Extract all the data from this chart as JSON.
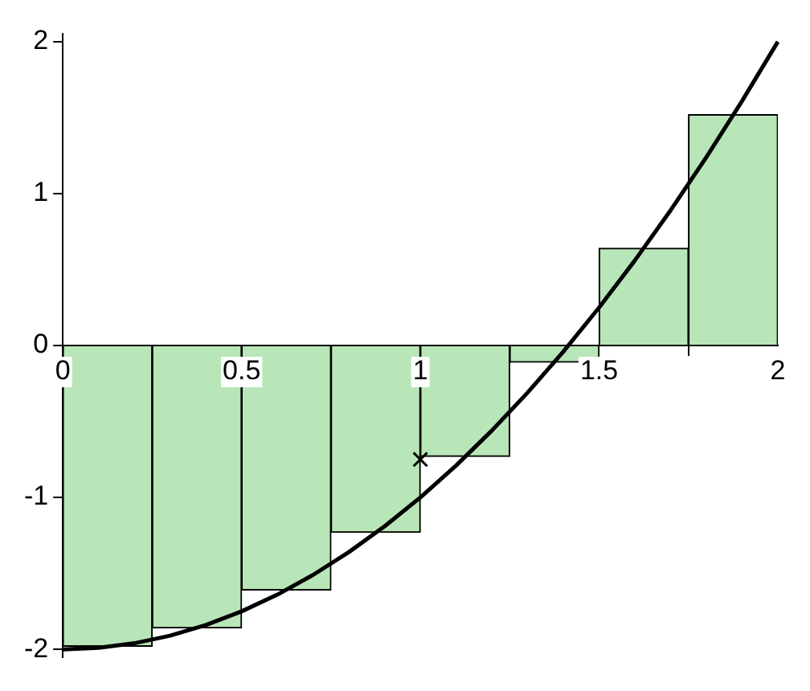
{
  "chart_data": {
    "type": "bar",
    "xlim": [
      0,
      2
    ],
    "xticks": [
      0,
      0.5,
      1,
      1.5,
      2
    ],
    "ylim": [
      -2.05,
      2.05
    ],
    "yticks": [
      -2,
      -1,
      0,
      1,
      2
    ],
    "grid": false,
    "legend": false,
    "series": [
      {
        "color": "#b8e6b8",
        "x": [
          0.125,
          0.375,
          0.625,
          0.875,
          1.125,
          1.375,
          1.625,
          1.875
        ],
        "values": [
          -1.98,
          -1.86,
          -1.61,
          -1.23,
          -0.73,
          -0.11,
          0.64,
          1.52
        ]
      },
      {
        "type": "line",
        "color": "#000000",
        "x": [
          0,
          0.1,
          0.2,
          0.3,
          0.4,
          0.5,
          0.6,
          0.7,
          0.8,
          0.9,
          1,
          1.1,
          1.2,
          1.3,
          1.4,
          1.5,
          1.6,
          1.7,
          1.8,
          1.9,
          2
        ],
        "values": [
          -2,
          -1.99,
          -1.96,
          -1.91,
          -1.84,
          -1.75,
          -1.64,
          -1.51,
          -1.36,
          -1.19,
          -1,
          -0.79,
          -0.56,
          -0.31,
          -0.04,
          0.25,
          0.56,
          0.89,
          1.24,
          1.61,
          2
        ]
      },
      {
        "type": "scatter",
        "color": "#000000",
        "marker": "cross",
        "x": [
          1
        ],
        "values": [
          -0.75
        ]
      }
    ]
  }
}
